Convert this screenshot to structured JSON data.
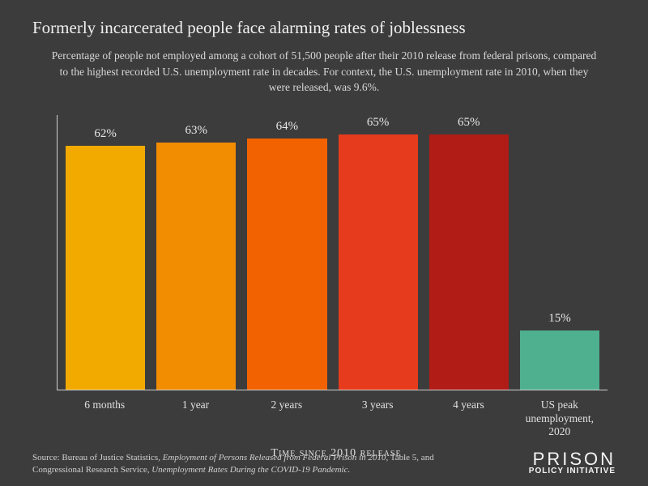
{
  "title": "Formerly incarcerated people face alarming rates of joblessness",
  "subtitle": "Percentage of people not employed among a cohort of 51,500 people after their 2010 release from federal prisons, compared to the highest recorded U.S. unemployment rate in decades. For context, the U.S. unemployment rate in 2010, when they were released, was 9.6%.",
  "chart": {
    "type": "bar",
    "axis_title": "Time since 2010 release",
    "ylim_max": 70,
    "background_color": "#3c3c3c",
    "axis_color": "#d0d0d0",
    "text_color": "#e8e8e8",
    "title_fontsize": 21,
    "subtitle_fontsize": 13.5,
    "value_fontsize": 15,
    "xlabel_fontsize": 13.5,
    "bars": [
      {
        "label": "6 months",
        "value": 62,
        "display": "62%",
        "color": "#f2a900"
      },
      {
        "label": "1 year",
        "value": 63,
        "display": "63%",
        "color": "#f28c00"
      },
      {
        "label": "2 years",
        "value": 64,
        "display": "64%",
        "color": "#f26200"
      },
      {
        "label": "3 years",
        "value": 65,
        "display": "65%",
        "color": "#e63b1c"
      },
      {
        "label": "4 years",
        "value": 65,
        "display": "65%",
        "color": "#b11c16"
      },
      {
        "label": "US peak unemployment, 2020",
        "value": 15,
        "display": "15%",
        "color": "#4fb08f"
      }
    ]
  },
  "source_prefix": "Source: Bureau of Justice Statistics, ",
  "source_italic1": "Employment of Persons Released from Federal Prison in 2010,",
  "source_mid": " Table 5, and Congressional Research Service, ",
  "source_italic2": "Unemployment Rates During the COVID-19 Pandemic.",
  "logo": {
    "line1": "PRISON",
    "line2": "POLICY INITIATIVE"
  }
}
